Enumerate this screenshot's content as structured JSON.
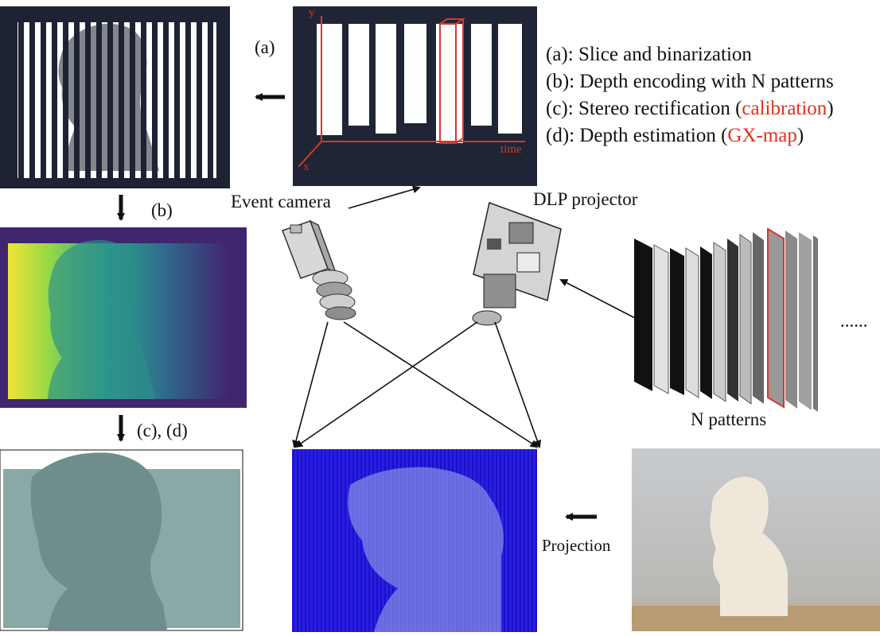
{
  "panels": {
    "event_slice_labels": {
      "y": "y",
      "x": "x",
      "time": "time"
    }
  },
  "labels": {
    "a": "(a)",
    "b": "(b)",
    "cd": "(c), (d)",
    "event_camera": "Event camera",
    "dlp_projector": "DLP projector",
    "n_patterns": "N patterns",
    "projection": "Projection",
    "ellipsis": "......"
  },
  "legend": {
    "a": "(a): Slice and binarization",
    "b": "(b): Depth encoding with N patterns",
    "c_prefix": "(c): Stereo rectification (",
    "c_highlight": "calibration",
    "c_suffix": ")",
    "d_prefix": "(d): Depth estimation (",
    "d_highlight": "GX-map",
    "d_suffix": ")"
  },
  "colors": {
    "highlight": "#e0301e",
    "dark_panel": "#1f2534",
    "projection_blue": "#2a1fe0",
    "mesh": "#8aa9a6",
    "arrow": "#111111"
  }
}
